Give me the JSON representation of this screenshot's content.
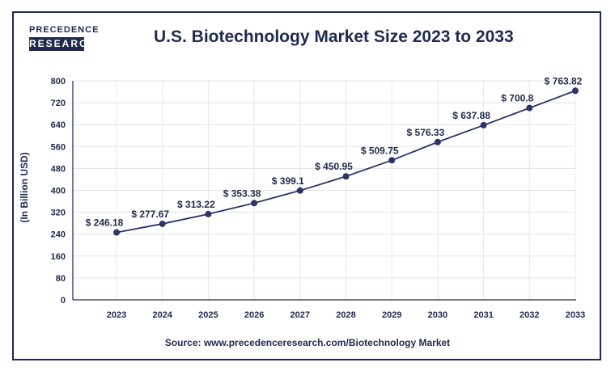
{
  "logo": {
    "top": "PRECEDENCE",
    "bottom": "RESEARCH"
  },
  "chart_data": {
    "type": "line",
    "title": "U.S. Biotechnology Market Size 2023 to 2033",
    "xlabel": "",
    "ylabel": "(In Billion USD)",
    "categories": [
      "2023",
      "2024",
      "2025",
      "2026",
      "2027",
      "2028",
      "2029",
      "2030",
      "2031",
      "2032",
      "2033"
    ],
    "values": [
      246.18,
      277.67,
      313.22,
      353.38,
      399.1,
      450.95,
      509.75,
      576.33,
      637.88,
      700.8,
      763.82
    ],
    "data_labels": [
      "$ 246.18",
      "$ 277.67",
      "$ 313.22",
      "$ 353.38",
      "$ 399.1",
      "$ 450.95",
      "$ 509.75",
      "$ 576.33",
      "$ 637.88",
      "$ 700.8",
      "$ 763.82"
    ],
    "yticks": [
      0,
      80,
      160,
      240,
      320,
      400,
      480,
      560,
      640,
      720,
      800
    ],
    "ylim": [
      0,
      800
    ],
    "grid": true,
    "line_color": "#2b3566"
  },
  "source": "Source: www.precedenceresearch.com/Biotechnology Market"
}
